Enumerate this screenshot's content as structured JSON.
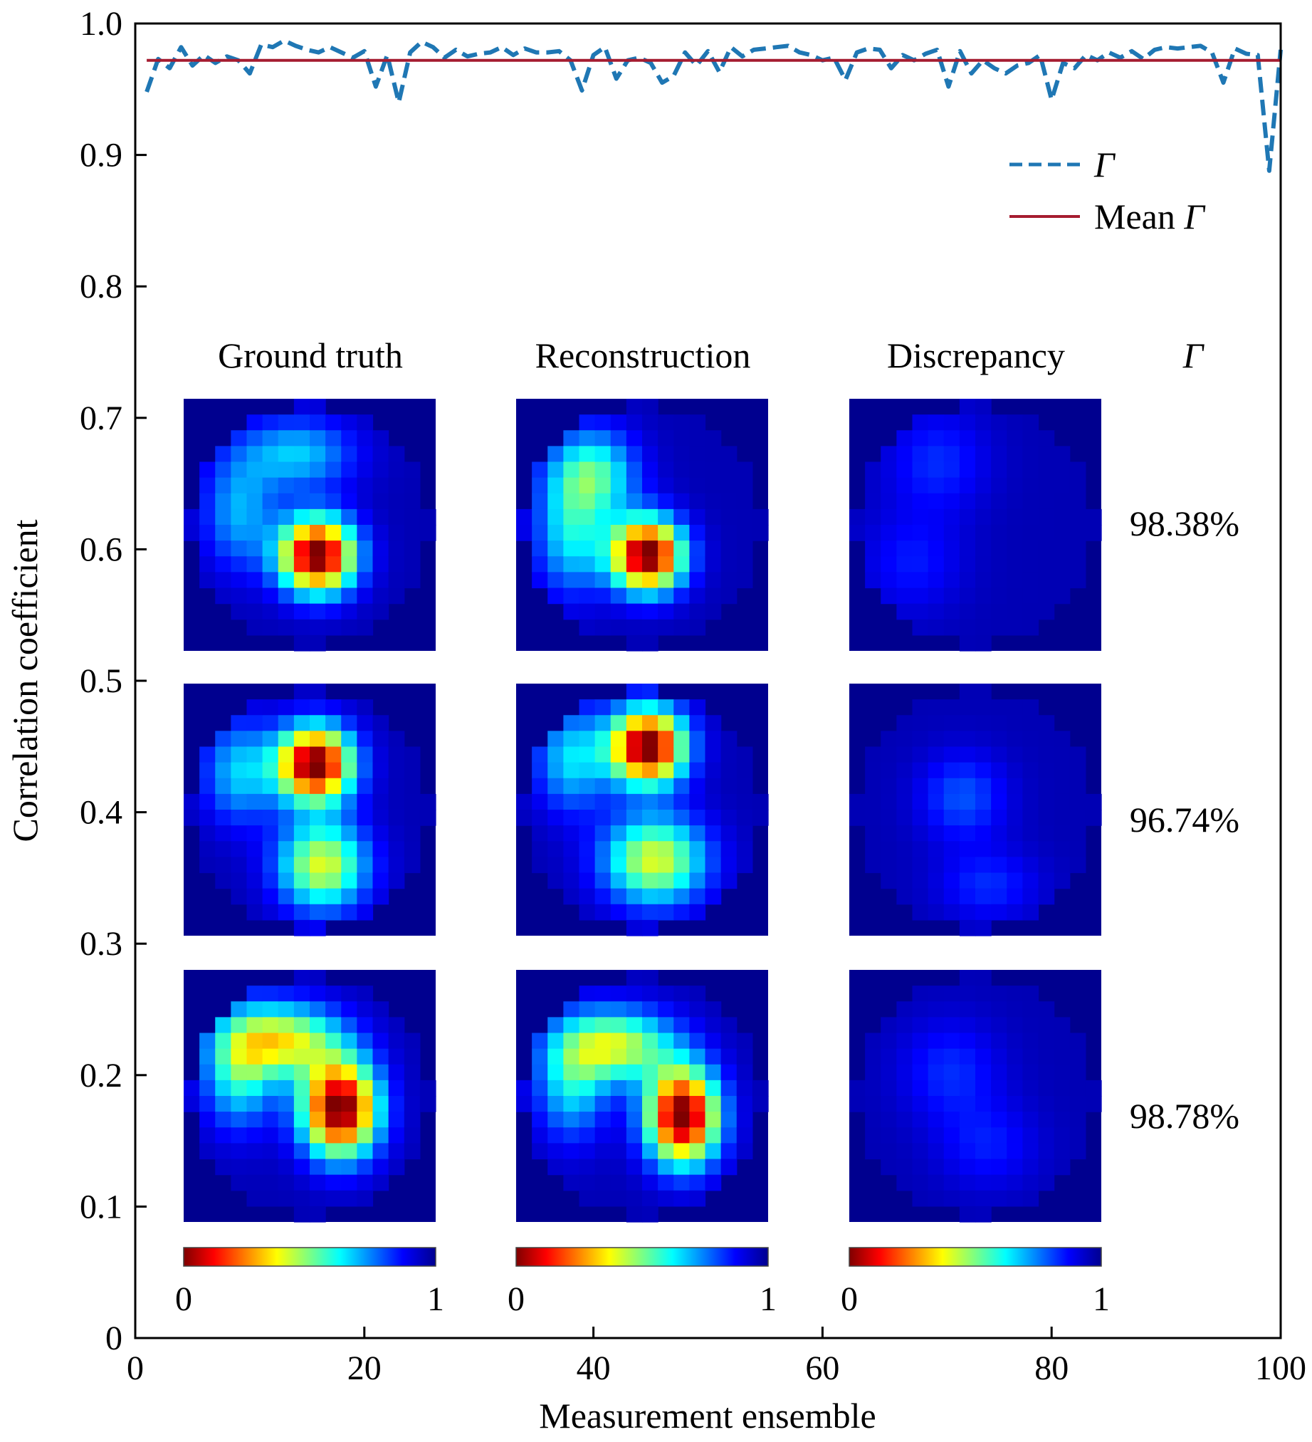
{
  "chart_data": {
    "type": "line",
    "xlabel": "Measurement ensemble",
    "ylabel": "Correlation coefficient",
    "xlim": [
      0,
      100
    ],
    "ylim": [
      0,
      1.0
    ],
    "xticks": [
      "0",
      "20",
      "40",
      "60",
      "80",
      "100"
    ],
    "yticks": [
      "0",
      "0.1",
      "0.2",
      "0.3",
      "0.4",
      "0.5",
      "0.6",
      "0.7",
      "0.8",
      "0.9",
      "1.0"
    ],
    "grid": false,
    "legend_position": "top-right",
    "series": [
      {
        "name": "Γ",
        "style": "dashed",
        "color": "#1f77b4",
        "x": [
          1,
          2,
          3,
          4,
          5,
          6,
          7,
          8,
          9,
          10,
          11,
          12,
          13,
          14,
          15,
          16,
          17,
          18,
          19,
          20,
          21,
          22,
          23,
          24,
          25,
          26,
          27,
          28,
          29,
          30,
          31,
          32,
          33,
          34,
          35,
          36,
          37,
          38,
          39,
          40,
          41,
          42,
          43,
          44,
          45,
          46,
          47,
          48,
          49,
          50,
          51,
          52,
          53,
          54,
          55,
          56,
          57,
          58,
          59,
          60,
          61,
          62,
          63,
          64,
          65,
          66,
          67,
          68,
          69,
          70,
          71,
          72,
          73,
          74,
          75,
          76,
          77,
          78,
          79,
          80,
          81,
          82,
          83,
          84,
          85,
          86,
          87,
          88,
          89,
          90,
          91,
          92,
          93,
          94,
          95,
          96,
          97,
          98,
          99,
          100
        ],
        "y": [
          0.948,
          0.973,
          0.966,
          0.982,
          0.968,
          0.976,
          0.97,
          0.975,
          0.972,
          0.962,
          0.984,
          0.982,
          0.987,
          0.983,
          0.98,
          0.978,
          0.982,
          0.978,
          0.974,
          0.979,
          0.952,
          0.976,
          0.94,
          0.978,
          0.986,
          0.982,
          0.974,
          0.98,
          0.975,
          0.977,
          0.978,
          0.982,
          0.976,
          0.981,
          0.978,
          0.978,
          0.979,
          0.972,
          0.949,
          0.976,
          0.982,
          0.958,
          0.972,
          0.974,
          0.97,
          0.955,
          0.96,
          0.978,
          0.968,
          0.979,
          0.963,
          0.982,
          0.975,
          0.98,
          0.981,
          0.982,
          0.983,
          0.978,
          0.976,
          0.972,
          0.974,
          0.957,
          0.978,
          0.981,
          0.98,
          0.966,
          0.976,
          0.972,
          0.977,
          0.98,
          0.952,
          0.979,
          0.962,
          0.972,
          0.966,
          0.962,
          0.968,
          0.97,
          0.976,
          0.942,
          0.97,
          0.966,
          0.976,
          0.972,
          0.978,
          0.974,
          0.979,
          0.973,
          0.98,
          0.982,
          0.981,
          0.982,
          0.983,
          0.978,
          0.955,
          0.981,
          0.977,
          0.976,
          0.888,
          0.98
        ]
      },
      {
        "name": "Mean Γ",
        "style": "solid",
        "color": "#a51c30",
        "x": [
          1,
          100
        ],
        "y": [
          0.972,
          0.972
        ]
      }
    ],
    "legend": [
      {
        "prefix": "",
        "symbol": "Γ"
      },
      {
        "prefix": "Mean ",
        "symbol": "Γ"
      }
    ],
    "inset": {
      "columns": [
        "Ground truth",
        "Reconstruction",
        "Discrepancy"
      ],
      "gamma_header": "Γ",
      "gamma_values": [
        "98.38%",
        "96.74%",
        "98.78%"
      ],
      "colorbar_min": "0",
      "colorbar_max": "1",
      "colormap": [
        "#7f0000",
        "#ff0000",
        "#ffff00",
        "#00ffff",
        "#0000ff",
        "#00008f"
      ]
    }
  }
}
